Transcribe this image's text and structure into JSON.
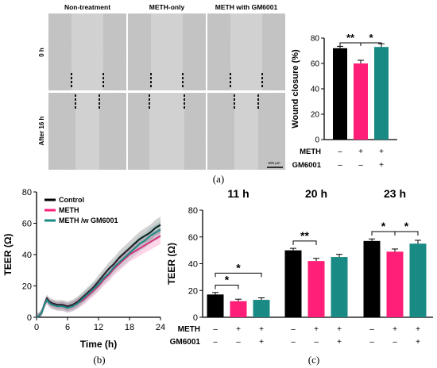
{
  "panel_a": {
    "column_headers": [
      "Non-treatment",
      "METH-only",
      "METH with GM6001"
    ],
    "row_labels": [
      "0 h",
      "After 16 h"
    ],
    "scale_bar_label": "500 µm",
    "caption": "(a)"
  },
  "panel_b_caption": "(b)",
  "panel_c_caption": "(c)",
  "colors": {
    "control": "#000000",
    "meth": "#ff1e78",
    "meth_gm6001": "#1a8a84",
    "image_bg": "#c9c9c9"
  },
  "chart_data": [
    {
      "id": "wound_closure",
      "type": "bar",
      "ylabel": "Wound closure (%)",
      "ylim": [
        0,
        80
      ],
      "yticks": [
        0,
        20,
        40,
        60,
        80
      ],
      "categories": [
        "Non-treatment",
        "METH-only",
        "METH with GM6001"
      ],
      "values": [
        72,
        60,
        73
      ],
      "errors": [
        1.5,
        2.5,
        2.5
      ],
      "row_labels": [
        "METH",
        "GM6001"
      ],
      "signs": [
        [
          "–",
          "+",
          "+"
        ],
        [
          "–",
          "–",
          "+"
        ]
      ],
      "significance": [
        {
          "from": 0,
          "to": 1,
          "label": "**"
        },
        {
          "from": 1,
          "to": 2,
          "label": "*"
        }
      ]
    },
    {
      "id": "teer_time",
      "type": "line",
      "xlabel": "Time (h)",
      "ylabel": "TEER (Ω)",
      "xlim": [
        0,
        24
      ],
      "ylim": [
        0,
        80
      ],
      "xticks": [
        0,
        6,
        12,
        18,
        24
      ],
      "yticks": [
        0,
        20,
        40,
        60,
        80
      ],
      "legend_position": "top-left",
      "x": [
        0,
        0.5,
        1,
        1.5,
        2,
        2.5,
        3,
        4,
        5,
        6,
        7,
        8,
        9,
        10,
        11,
        12,
        13,
        14,
        15,
        16,
        17,
        18,
        19,
        20,
        21,
        22,
        23,
        24
      ],
      "series": [
        {
          "name": "Control",
          "color_key": "control",
          "values": [
            0,
            1,
            3,
            8,
            12,
            10,
            9,
            8,
            8,
            7,
            8,
            10,
            13,
            16,
            19,
            23,
            27,
            31,
            34,
            38,
            41,
            44,
            47,
            50,
            52,
            54,
            57,
            59
          ]
        },
        {
          "name": "METH",
          "color_key": "meth",
          "values": [
            0,
            1,
            3,
            8,
            11,
            9,
            8,
            7,
            7,
            6,
            7,
            9,
            11,
            14,
            17,
            20,
            24,
            27,
            31,
            34,
            37,
            40,
            42,
            44,
            46,
            48,
            50,
            52
          ]
        },
        {
          "name": "METH /w GM6001",
          "color_key": "meth_gm6001",
          "values": [
            0,
            1,
            3,
            8,
            11,
            9,
            8,
            7,
            7,
            6,
            7,
            9,
            12,
            15,
            18,
            21,
            25,
            28,
            32,
            35,
            38,
            41,
            44,
            47,
            49,
            52,
            54,
            56
          ]
        }
      ]
    },
    {
      "id": "teer_timepoints",
      "type": "bar",
      "ylabel": "TEER (Ω)",
      "ylim": [
        0,
        80
      ],
      "yticks": [
        0,
        20,
        40,
        60,
        80
      ],
      "groups": [
        "11 h",
        "20 h",
        "23 h"
      ],
      "row_labels": [
        "METH",
        "GM6001"
      ],
      "signs": [
        [
          "–",
          "+",
          "+"
        ],
        [
          "–",
          "–",
          "+"
        ]
      ],
      "values": [
        [
          17,
          12,
          13
        ],
        [
          50,
          42,
          45
        ],
        [
          57,
          49,
          55
        ]
      ],
      "errors": [
        [
          1.5,
          1.5,
          1.5
        ],
        [
          1.5,
          2,
          2
        ],
        [
          1.5,
          2,
          2.5
        ]
      ],
      "significance": [
        {
          "group": 0,
          "from": 0,
          "to": 1,
          "label": "*",
          "y": 24
        },
        {
          "group": 0,
          "from": 0,
          "to": 2,
          "label": "*",
          "y": 33
        },
        {
          "group": 1,
          "from": 0,
          "to": 1,
          "label": "**",
          "y": 57
        },
        {
          "group": 2,
          "from": 0,
          "to": 1,
          "label": "*",
          "y": 64
        },
        {
          "group": 2,
          "from": 1,
          "to": 2,
          "label": "*",
          "y": 64
        }
      ]
    }
  ]
}
